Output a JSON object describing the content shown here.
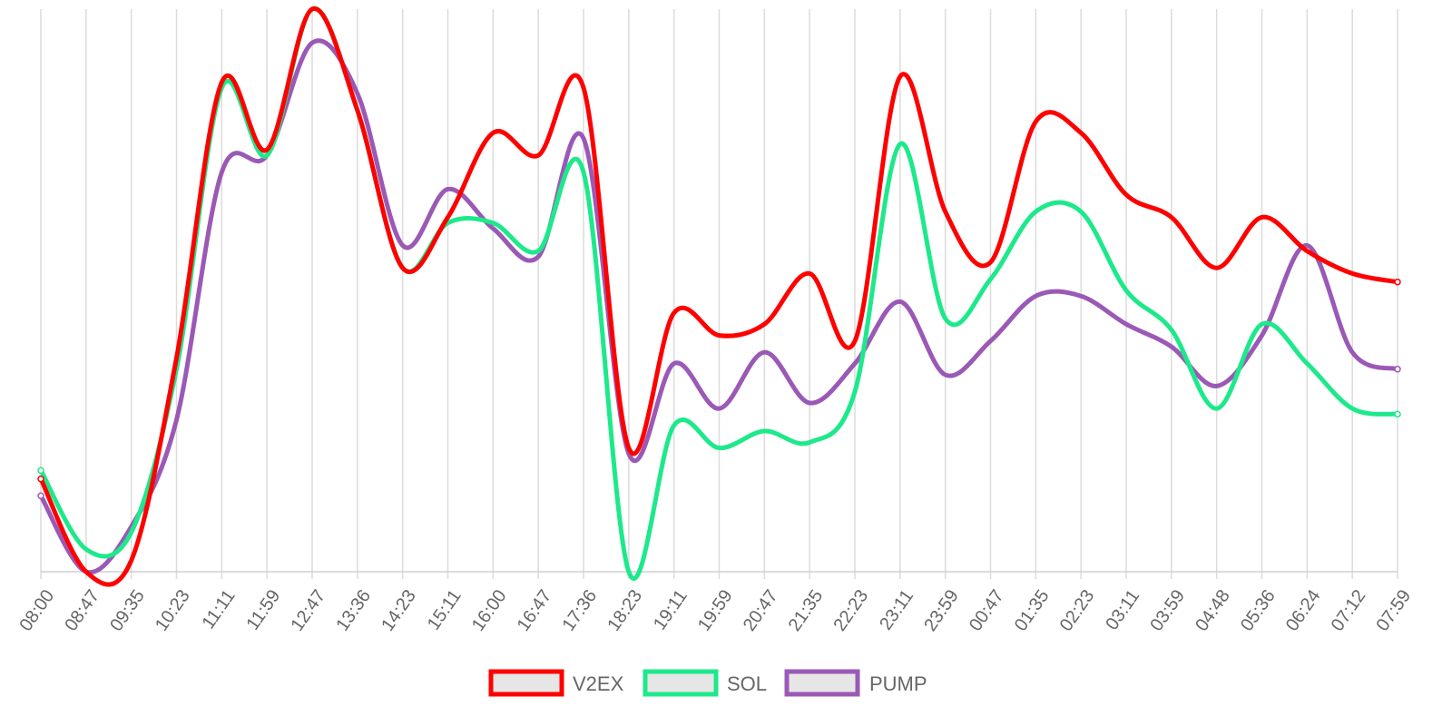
{
  "chart_data": {
    "type": "line",
    "title": "",
    "xlabel": "",
    "ylabel": "",
    "x": [
      "08:00",
      "08:47",
      "09:35",
      "10:23",
      "11:11",
      "11:59",
      "12:47",
      "13:36",
      "14:23",
      "15:11",
      "16:00",
      "16:47",
      "17:36",
      "18:23",
      "19:11",
      "19:59",
      "20:47",
      "21:35",
      "22:23",
      "23:11",
      "23:59",
      "00:47",
      "01:35",
      "02:23",
      "03:11",
      "03:59",
      "04:48",
      "05:36",
      "06:24",
      "07:12",
      "07:59"
    ],
    "ylim": [
      0,
      100
    ],
    "grid": true,
    "legend_position": "bottom",
    "series": [
      {
        "name": "V2EX",
        "color": "#ff0000",
        "values": [
          16.5,
          0,
          2,
          38,
          87,
          75,
          100,
          82,
          54,
          63,
          78,
          74,
          86,
          22,
          46,
          42,
          44,
          53,
          41,
          88,
          64,
          55,
          80,
          78,
          67,
          63,
          54,
          63,
          57,
          53,
          51.5
        ]
      },
      {
        "name": "SOL",
        "color": "#1de98b",
        "values": [
          18,
          4,
          7,
          36,
          86,
          74,
          100,
          82,
          54,
          62,
          62,
          57,
          71,
          0,
          26,
          22,
          25,
          23,
          32,
          76,
          45,
          52,
          64,
          64,
          50,
          43,
          29,
          44,
          37,
          29,
          28
        ]
      },
      {
        "name": "PUMP",
        "color": "#9b59b6",
        "values": [
          13.5,
          0,
          8,
          27,
          71,
          74,
          94,
          85,
          58,
          68,
          61,
          56,
          77,
          21,
          37,
          29,
          39,
          30,
          37,
          48,
          35,
          41,
          49,
          49,
          44,
          40,
          33,
          42,
          58,
          39,
          36
        ]
      }
    ]
  }
}
